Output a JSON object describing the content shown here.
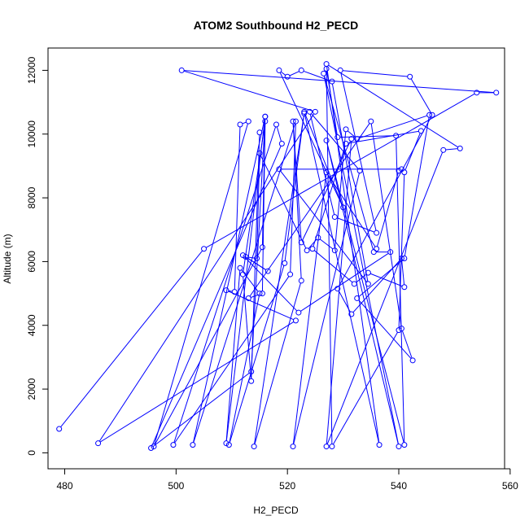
{
  "chart_data": {
    "type": "scatter",
    "title": "ATOM2 Southbound H2_PECD",
    "xlabel": "H2_PECD",
    "ylabel": "Altitude (m)",
    "xlim": [
      477,
      559
    ],
    "ylim": [
      -500,
      12700
    ],
    "xticks": [
      480,
      500,
      520,
      540,
      560
    ],
    "yticks": [
      0,
      2000,
      4000,
      6000,
      8000,
      10000,
      12000
    ],
    "connected": true,
    "marker": "open-circle",
    "color": "#0000ff",
    "points": [
      [
        479,
        750
      ],
      [
        505,
        6400
      ],
      [
        554,
        11300
      ],
      [
        557.5,
        11300
      ],
      [
        501,
        12000
      ],
      [
        525,
        10700
      ],
      [
        486,
        300
      ],
      [
        521.5,
        4150
      ],
      [
        509,
        5100
      ],
      [
        510.5,
        5050
      ],
      [
        511.5,
        10300
      ],
      [
        513,
        10400
      ],
      [
        496,
        200
      ],
      [
        515.5,
        6450
      ],
      [
        516,
        10550
      ],
      [
        513.5,
        2550
      ],
      [
        495.5,
        150
      ],
      [
        519,
        9700
      ],
      [
        518,
        10300
      ],
      [
        499.5,
        250
      ],
      [
        520.5,
        5600
      ],
      [
        521.5,
        10400
      ],
      [
        503,
        250
      ],
      [
        516,
        10550
      ],
      [
        509,
        300
      ],
      [
        511.5,
        5800
      ],
      [
        515,
        5000
      ],
      [
        509.5,
        250
      ],
      [
        519.5,
        5950
      ],
      [
        523,
        10650
      ],
      [
        514,
        200
      ],
      [
        522.5,
        5400
      ],
      [
        521,
        10400
      ],
      [
        522.5,
        6600
      ],
      [
        531.5,
        9850
      ],
      [
        527,
        200
      ],
      [
        548,
        9500
      ],
      [
        551,
        9550
      ],
      [
        527,
        12200
      ],
      [
        536.5,
        250
      ],
      [
        523,
        10700
      ],
      [
        530,
        7700
      ],
      [
        518.5,
        12000
      ],
      [
        520,
        11800
      ],
      [
        522.5,
        12000
      ],
      [
        528,
        11650
      ],
      [
        534.5,
        5300
      ],
      [
        518.5,
        8900
      ],
      [
        540.5,
        8900
      ],
      [
        540,
        8850
      ],
      [
        536,
        6400
      ],
      [
        527,
        8800
      ],
      [
        521,
        200
      ],
      [
        533,
        8850
      ],
      [
        524,
        10700
      ],
      [
        528.5,
        7400
      ],
      [
        536,
        6900
      ],
      [
        529.5,
        12000
      ],
      [
        542,
        11800
      ],
      [
        546,
        10600
      ],
      [
        529,
        5150
      ],
      [
        531.5,
        4350
      ],
      [
        540.5,
        6100
      ],
      [
        541,
        5200
      ],
      [
        534.5,
        5650
      ],
      [
        532,
        5300
      ],
      [
        524.5,
        6400
      ],
      [
        530.5,
        9700
      ],
      [
        544,
        10100
      ],
      [
        541,
        8800
      ],
      [
        540,
        3850
      ],
      [
        528,
        200
      ],
      [
        527,
        12050
      ],
      [
        529,
        9900
      ],
      [
        539.5,
        9950
      ],
      [
        541,
        250
      ],
      [
        527,
        9800
      ],
      [
        540,
        200
      ],
      [
        526.5,
        11900
      ],
      [
        535.5,
        6300
      ],
      [
        538.5,
        6300
      ],
      [
        522,
        4400
      ],
      [
        512,
        6200
      ],
      [
        516.5,
        5700
      ],
      [
        512.5,
        6150
      ],
      [
        514.5,
        6100
      ],
      [
        515,
        9400
      ],
      [
        523.5,
        6350
      ],
      [
        525.5,
        6750
      ],
      [
        528.5,
        6350
      ],
      [
        530.5,
        10150
      ],
      [
        532.5,
        9850
      ],
      [
        545.5,
        10600
      ],
      [
        541,
        6100
      ],
      [
        532.5,
        4850
      ],
      [
        542.5,
        2900
      ],
      [
        540.5,
        3900
      ],
      [
        535,
        10400
      ],
      [
        513,
        4850
      ],
      [
        515.5,
        5000
      ],
      [
        516,
        10400
      ],
      [
        512,
        5600
      ],
      [
        513.5,
        2250
      ],
      [
        515,
        10050
      ]
    ]
  }
}
